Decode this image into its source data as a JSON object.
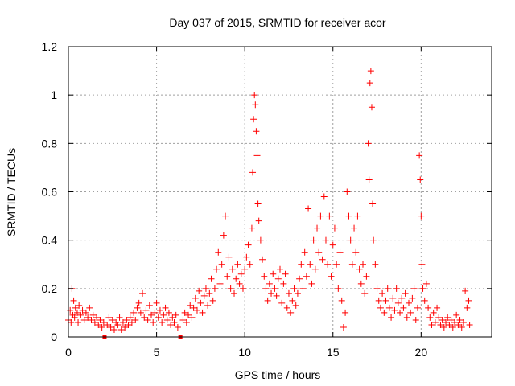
{
  "chart_data": {
    "type": "scatter",
    "title": "Day 037 of 2015, SRMTID for receiver acor",
    "xlabel": "GPS time / hours",
    "ylabel": "SRMTID / TECUs",
    "xlim": [
      0,
      24
    ],
    "ylim": [
      0,
      1.2
    ],
    "x_ticks": [
      0,
      5,
      10,
      15,
      20
    ],
    "x_tick_labels": [
      "0",
      "5",
      "10",
      "15",
      "20"
    ],
    "y_ticks": [
      0,
      0.2,
      0.4,
      0.6,
      0.8,
      1.0,
      1.2
    ],
    "y_tick_labels": [
      "0",
      "0.2",
      "0.4",
      "0.6",
      "0.8",
      "1",
      "1.2"
    ],
    "grid": true,
    "legend": "none",
    "marker": "plus",
    "color": "#ff0000",
    "gap_markers": [
      2.05,
      6.35
    ],
    "series": [
      {
        "name": "SRMTID",
        "points": [
          [
            0.0,
            0.07
          ],
          [
            0.1,
            0.11
          ],
          [
            0.15,
            0.06
          ],
          [
            0.2,
            0.2
          ],
          [
            0.25,
            0.09
          ],
          [
            0.3,
            0.15
          ],
          [
            0.35,
            0.08
          ],
          [
            0.4,
            0.12
          ],
          [
            0.5,
            0.1
          ],
          [
            0.55,
            0.06
          ],
          [
            0.6,
            0.13
          ],
          [
            0.7,
            0.09
          ],
          [
            0.8,
            0.11
          ],
          [
            0.9,
            0.07
          ],
          [
            1.0,
            0.1
          ],
          [
            1.1,
            0.08
          ],
          [
            1.2,
            0.12
          ],
          [
            1.3,
            0.07
          ],
          [
            1.4,
            0.09
          ],
          [
            1.5,
            0.06
          ],
          [
            1.6,
            0.08
          ],
          [
            1.7,
            0.05
          ],
          [
            1.8,
            0.07
          ],
          [
            1.9,
            0.04
          ],
          [
            2.0,
            0.06
          ],
          [
            2.2,
            0.05
          ],
          [
            2.3,
            0.08
          ],
          [
            2.4,
            0.04
          ],
          [
            2.5,
            0.07
          ],
          [
            2.6,
            0.03
          ],
          [
            2.7,
            0.06
          ],
          [
            2.8,
            0.05
          ],
          [
            2.9,
            0.08
          ],
          [
            3.0,
            0.03
          ],
          [
            3.1,
            0.06
          ],
          [
            3.2,
            0.04
          ],
          [
            3.3,
            0.07
          ],
          [
            3.4,
            0.05
          ],
          [
            3.5,
            0.08
          ],
          [
            3.6,
            0.06
          ],
          [
            3.7,
            0.1
          ],
          [
            3.8,
            0.07
          ],
          [
            3.9,
            0.12
          ],
          [
            4.0,
            0.14
          ],
          [
            4.1,
            0.1
          ],
          [
            4.2,
            0.18
          ],
          [
            4.3,
            0.08
          ],
          [
            4.4,
            0.11
          ],
          [
            4.5,
            0.07
          ],
          [
            4.6,
            0.13
          ],
          [
            4.7,
            0.09
          ],
          [
            4.8,
            0.06
          ],
          [
            4.9,
            0.1
          ],
          [
            5.0,
            0.14
          ],
          [
            5.1,
            0.08
          ],
          [
            5.2,
            0.11
          ],
          [
            5.3,
            0.06
          ],
          [
            5.4,
            0.09
          ],
          [
            5.5,
            0.12
          ],
          [
            5.6,
            0.07
          ],
          [
            5.7,
            0.1
          ],
          [
            5.8,
            0.05
          ],
          [
            5.9,
            0.08
          ],
          [
            6.0,
            0.06
          ],
          [
            6.1,
            0.09
          ],
          [
            6.2,
            0.04
          ],
          [
            6.5,
            0.07
          ],
          [
            6.6,
            0.1
          ],
          [
            6.7,
            0.06
          ],
          [
            6.8,
            0.09
          ],
          [
            6.9,
            0.13
          ],
          [
            7.0,
            0.08
          ],
          [
            7.1,
            0.12
          ],
          [
            7.2,
            0.16
          ],
          [
            7.3,
            0.11
          ],
          [
            7.4,
            0.19
          ],
          [
            7.5,
            0.14
          ],
          [
            7.6,
            0.1
          ],
          [
            7.7,
            0.17
          ],
          [
            7.8,
            0.2
          ],
          [
            7.9,
            0.13
          ],
          [
            8.0,
            0.18
          ],
          [
            8.1,
            0.24
          ],
          [
            8.2,
            0.15
          ],
          [
            8.3,
            0.2
          ],
          [
            8.4,
            0.28
          ],
          [
            8.5,
            0.35
          ],
          [
            8.6,
            0.22
          ],
          [
            8.7,
            0.3
          ],
          [
            8.8,
            0.42
          ],
          [
            8.9,
            0.5
          ],
          [
            9.0,
            0.25
          ],
          [
            9.1,
            0.33
          ],
          [
            9.2,
            0.2
          ],
          [
            9.3,
            0.28
          ],
          [
            9.4,
            0.18
          ],
          [
            9.5,
            0.24
          ],
          [
            9.6,
            0.3
          ],
          [
            9.7,
            0.22
          ],
          [
            9.8,
            0.26
          ],
          [
            9.9,
            0.2
          ],
          [
            10.0,
            0.28
          ],
          [
            10.1,
            0.33
          ],
          [
            10.2,
            0.38
          ],
          [
            10.3,
            0.3
          ],
          [
            10.4,
            0.45
          ],
          [
            10.45,
            0.68
          ],
          [
            10.5,
            0.9
          ],
          [
            10.55,
            1.0
          ],
          [
            10.6,
            0.96
          ],
          [
            10.65,
            0.85
          ],
          [
            10.7,
            0.75
          ],
          [
            10.75,
            0.55
          ],
          [
            10.8,
            0.48
          ],
          [
            10.9,
            0.4
          ],
          [
            11.0,
            0.32
          ],
          [
            11.1,
            0.25
          ],
          [
            11.2,
            0.2
          ],
          [
            11.3,
            0.15
          ],
          [
            11.4,
            0.22
          ],
          [
            11.5,
            0.18
          ],
          [
            11.6,
            0.26
          ],
          [
            11.7,
            0.2
          ],
          [
            11.8,
            0.17
          ],
          [
            11.9,
            0.24
          ],
          [
            12.0,
            0.28
          ],
          [
            12.1,
            0.14
          ],
          [
            12.2,
            0.22
          ],
          [
            12.3,
            0.26
          ],
          [
            12.4,
            0.12
          ],
          [
            12.5,
            0.18
          ],
          [
            12.6,
            0.1
          ],
          [
            12.7,
            0.15
          ],
          [
            12.8,
            0.2
          ],
          [
            12.9,
            0.13
          ],
          [
            13.0,
            0.18
          ],
          [
            13.1,
            0.24
          ],
          [
            13.2,
            0.3
          ],
          [
            13.3,
            0.2
          ],
          [
            13.4,
            0.35
          ],
          [
            13.5,
            0.25
          ],
          [
            13.6,
            0.53
          ],
          [
            13.7,
            0.3
          ],
          [
            13.8,
            0.22
          ],
          [
            13.9,
            0.4
          ],
          [
            14.0,
            0.28
          ],
          [
            14.1,
            0.45
          ],
          [
            14.2,
            0.35
          ],
          [
            14.3,
            0.5
          ],
          [
            14.4,
            0.32
          ],
          [
            14.5,
            0.58
          ],
          [
            14.6,
            0.4
          ],
          [
            14.7,
            0.3
          ],
          [
            14.8,
            0.5
          ],
          [
            14.9,
            0.25
          ],
          [
            15.0,
            0.38
          ],
          [
            15.1,
            0.45
          ],
          [
            15.2,
            0.3
          ],
          [
            15.3,
            0.2
          ],
          [
            15.4,
            0.35
          ],
          [
            15.5,
            0.15
          ],
          [
            15.6,
            0.04
          ],
          [
            15.7,
            0.1
          ],
          [
            15.8,
            0.6
          ],
          [
            15.9,
            0.5
          ],
          [
            16.0,
            0.4
          ],
          [
            16.1,
            0.3
          ],
          [
            16.2,
            0.45
          ],
          [
            16.3,
            0.35
          ],
          [
            16.4,
            0.5
          ],
          [
            16.5,
            0.28
          ],
          [
            16.6,
            0.22
          ],
          [
            16.7,
            0.3
          ],
          [
            16.8,
            0.18
          ],
          [
            16.9,
            0.25
          ],
          [
            17.0,
            0.8
          ],
          [
            17.05,
            0.65
          ],
          [
            17.1,
            1.05
          ],
          [
            17.15,
            1.1
          ],
          [
            17.2,
            0.95
          ],
          [
            17.25,
            0.55
          ],
          [
            17.3,
            0.4
          ],
          [
            17.4,
            0.3
          ],
          [
            17.5,
            0.2
          ],
          [
            17.6,
            0.15
          ],
          [
            17.7,
            0.12
          ],
          [
            17.8,
            0.18
          ],
          [
            17.9,
            0.1
          ],
          [
            18.0,
            0.15
          ],
          [
            18.1,
            0.2
          ],
          [
            18.2,
            0.12
          ],
          [
            18.3,
            0.08
          ],
          [
            18.4,
            0.16
          ],
          [
            18.5,
            0.11
          ],
          [
            18.6,
            0.2
          ],
          [
            18.7,
            0.14
          ],
          [
            18.8,
            0.1
          ],
          [
            18.9,
            0.16
          ],
          [
            19.0,
            0.12
          ],
          [
            19.1,
            0.18
          ],
          [
            19.2,
            0.08
          ],
          [
            19.3,
            0.14
          ],
          [
            19.4,
            0.1
          ],
          [
            19.5,
            0.16
          ],
          [
            19.6,
            0.2
          ],
          [
            19.7,
            0.07
          ],
          [
            19.8,
            0.12
          ],
          [
            19.9,
            0.75
          ],
          [
            19.95,
            0.65
          ],
          [
            20.0,
            0.5
          ],
          [
            20.05,
            0.3
          ],
          [
            20.1,
            0.2
          ],
          [
            20.2,
            0.15
          ],
          [
            20.3,
            0.22
          ],
          [
            20.4,
            0.12
          ],
          [
            20.5,
            0.08
          ],
          [
            20.6,
            0.05
          ],
          [
            20.7,
            0.1
          ],
          [
            20.8,
            0.06
          ],
          [
            20.9,
            0.12
          ],
          [
            21.0,
            0.08
          ],
          [
            21.1,
            0.05
          ],
          [
            21.2,
            0.07
          ],
          [
            21.3,
            0.04
          ],
          [
            21.4,
            0.06
          ],
          [
            21.5,
            0.08
          ],
          [
            21.6,
            0.05
          ],
          [
            21.7,
            0.07
          ],
          [
            21.8,
            0.04
          ],
          [
            21.9,
            0.06
          ],
          [
            22.0,
            0.09
          ],
          [
            22.1,
            0.05
          ],
          [
            22.2,
            0.07
          ],
          [
            22.3,
            0.04
          ],
          [
            22.4,
            0.06
          ],
          [
            22.5,
            0.19
          ],
          [
            22.6,
            0.12
          ],
          [
            22.7,
            0.15
          ],
          [
            22.75,
            0.05
          ]
        ]
      }
    ]
  }
}
